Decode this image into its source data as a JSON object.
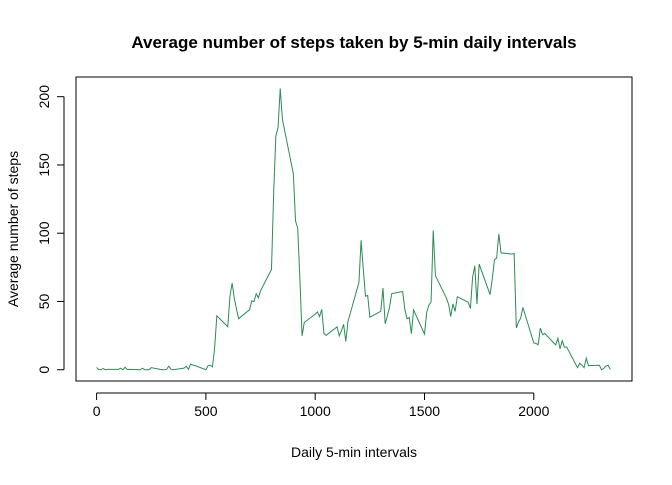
{
  "chart_data": {
    "type": "line",
    "title": "Average number of steps taken by 5-min daily intervals",
    "xlabel": "Daily 5-min intervals",
    "ylabel": "Average number of steps",
    "color": "#2e8b57",
    "x": [
      0,
      10,
      20,
      30,
      40,
      50,
      100,
      110,
      120,
      130,
      140,
      150,
      200,
      210,
      220,
      230,
      240,
      250,
      300,
      310,
      320,
      330,
      340,
      350,
      400,
      410,
      420,
      430,
      440,
      450,
      500,
      510,
      520,
      530,
      540,
      550,
      600,
      610,
      620,
      630,
      640,
      650,
      700,
      710,
      720,
      730,
      740,
      750,
      800,
      810,
      820,
      830,
      840,
      850,
      900,
      910,
      920,
      930,
      940,
      950,
      1000,
      1010,
      1020,
      1030,
      1040,
      1050,
      1100,
      1110,
      1120,
      1130,
      1140,
      1150,
      1200,
      1210,
      1220,
      1230,
      1240,
      1250,
      1300,
      1310,
      1320,
      1330,
      1340,
      1350,
      1400,
      1410,
      1420,
      1430,
      1440,
      1450,
      1500,
      1510,
      1520,
      1530,
      1540,
      1550,
      1600,
      1610,
      1620,
      1630,
      1640,
      1650,
      1700,
      1710,
      1720,
      1730,
      1740,
      1750,
      1800,
      1810,
      1820,
      1830,
      1840,
      1850,
      1900,
      1910,
      1920,
      1930,
      1940,
      1950,
      2000,
      2010,
      2020,
      2030,
      2040,
      2050,
      2100,
      2110,
      2120,
      2130,
      2140,
      2150,
      2200,
      2210,
      2220,
      2230,
      2240,
      2250,
      2300,
      2310,
      2320,
      2330,
      2340,
      2350
    ],
    "values": [
      1.7,
      0.1,
      0.1,
      0.9,
      0,
      0.3,
      0.3,
      1.1,
      0,
      1.8,
      0.2,
      0.3,
      0,
      1.1,
      0,
      0,
      0,
      1.5,
      0,
      0,
      0.2,
      2.6,
      0.5,
      0,
      1.2,
      2.6,
      0.3,
      4.1,
      3.5,
      3.1,
      0,
      3,
      3.3,
      2.1,
      16,
      39.5,
      31.5,
      53.8,
      63.5,
      52.2,
      44.2,
      37.4,
      44,
      50.5,
      49.9,
      55.7,
      52.7,
      57.8,
      73.4,
      129.4,
      171.2,
      177.3,
      206,
      183.4,
      143.5,
      109.1,
      103.7,
      66.2,
      24.8,
      34.7,
      40.6,
      42.4,
      38.9,
      44.3,
      26.5,
      25.2,
      31.4,
      24.8,
      28.4,
      33.3,
      20.7,
      35.4,
      63.9,
      94.8,
      73.6,
      53.8,
      54.5,
      38.5,
      42.8,
      59.8,
      33.7,
      39.3,
      45.8,
      55.7,
      57.3,
      44.3,
      37.3,
      38.4,
      26.4,
      43.8,
      26.1,
      42,
      47.3,
      49.6,
      102.1,
      68.9,
      52.6,
      48,
      39,
      48.3,
      42.7,
      53.5,
      49.4,
      44.9,
      67.7,
      76.1,
      48.1,
      77.4,
      55,
      66.4,
      80.7,
      81.8,
      99.5,
      85.6,
      84.7,
      85.3,
      30.6,
      35,
      37.8,
      45.7,
      19.6,
      19.3,
      18.3,
      30.5,
      25.7,
      26.6,
      18.2,
      23,
      15.4,
      21.3,
      16.5,
      16.7,
      1.5,
      4.7,
      3.4,
      1.5,
      8.4,
      3,
      3.3,
      0,
      1,
      2.6,
      3.3,
      0.2
    ],
    "xlim": [
      -94.2,
      2449.2
    ],
    "ylim": [
      -8.25,
      214.42
    ],
    "xticks": [
      0,
      500,
      1000,
      1500,
      2000
    ],
    "yticks": [
      0,
      50,
      100,
      150,
      200
    ]
  }
}
